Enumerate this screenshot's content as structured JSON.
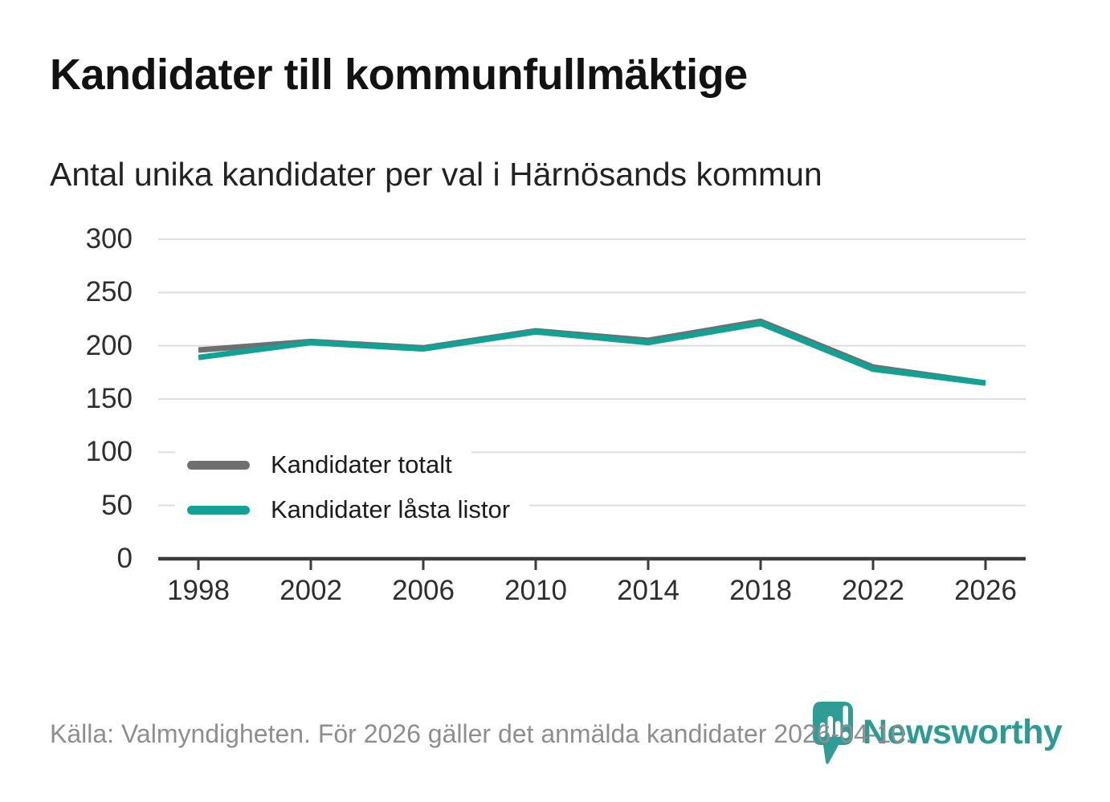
{
  "page": {
    "title": "Kandidater till kommunfullmäktige",
    "subtitle": "Antal unika kandidater per val i Härnösands kommun",
    "footer_source": "Källa: Valmyndigheten. För 2026 gäller det anmälda kandidater 2026-04-10.",
    "brand": "Newsworthy"
  },
  "colors": {
    "accent_teal": "#0fa295",
    "series_gray": "#6f6f6f",
    "logo_teal": "#2f9d96",
    "wordmark_teal": "#2d9a94",
    "gridline": "#dedede",
    "axis": "#3b3b3b",
    "footer_text": "#8e8e8e"
  },
  "chart_data": {
    "type": "line",
    "title": "Kandidater till kommunfullmäktige",
    "subtitle": "Antal unika kandidater per val i Härnösands kommun",
    "x": [
      1998,
      2002,
      2006,
      2010,
      2014,
      2018,
      2022,
      2026
    ],
    "series": [
      {
        "name": "Kandidater totalt",
        "color": "#6f6f6f",
        "values": [
          196,
          204,
          198,
          214,
          205,
          223,
          180,
          165
        ]
      },
      {
        "name": "Kandidater låsta listor",
        "color": "#0fa295",
        "values": [
          189,
          203,
          197,
          213,
          203,
          221,
          178,
          165
        ]
      }
    ],
    "ylim": [
      0,
      300
    ],
    "yticks": [
      0,
      50,
      100,
      150,
      200,
      250,
      300
    ],
    "grid": "horizontal",
    "legend_position": "inside-bottom-left"
  }
}
